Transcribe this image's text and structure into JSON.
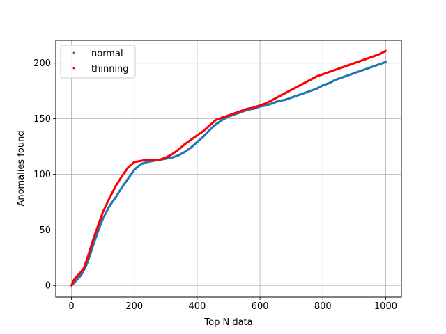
{
  "chart_data": {
    "type": "scatter",
    "title": "",
    "xlabel": "Top N data",
    "ylabel": "Anomalies found",
    "xlim": [
      -50,
      1050
    ],
    "ylim": [
      -10.5,
      220.5
    ],
    "xticks": [
      0,
      200,
      400,
      600,
      800,
      1000
    ],
    "yticks": [
      0,
      50,
      100,
      150,
      200
    ],
    "xtick_labels": [
      "0",
      "200",
      "400",
      "600",
      "800",
      "1000"
    ],
    "ytick_labels": [
      "0",
      "50",
      "100",
      "150",
      "200"
    ],
    "grid": true,
    "legend_position": "top-left",
    "series": [
      {
        "name": "normal",
        "color": "#1f77b4",
        "x": [
          0,
          10,
          20,
          30,
          40,
          50,
          60,
          70,
          80,
          90,
          100,
          120,
          140,
          160,
          180,
          200,
          220,
          240,
          260,
          280,
          300,
          320,
          340,
          360,
          380,
          400,
          420,
          440,
          460,
          480,
          500,
          520,
          540,
          560,
          580,
          600,
          620,
          640,
          660,
          680,
          700,
          720,
          740,
          760,
          780,
          800,
          820,
          840,
          860,
          880,
          900,
          920,
          940,
          960,
          980,
          1000
        ],
        "y": [
          0,
          3,
          6,
          9,
          14,
          20,
          28,
          37,
          45,
          53,
          60,
          71,
          79,
          88,
          96,
          104,
          109,
          111,
          112,
          113,
          114,
          115,
          117,
          120,
          124,
          129,
          134,
          140,
          145,
          149,
          152,
          154,
          156,
          158,
          159,
          161,
          162,
          164,
          166,
          167,
          169,
          171,
          173,
          175,
          177,
          180,
          182,
          185,
          187,
          189,
          191,
          193,
          195,
          197,
          199,
          201
        ]
      },
      {
        "name": "thinning",
        "color": "#ff0000",
        "x": [
          0,
          10,
          20,
          30,
          40,
          50,
          60,
          70,
          80,
          90,
          100,
          120,
          140,
          160,
          180,
          200,
          220,
          240,
          260,
          280,
          300,
          320,
          340,
          360,
          380,
          400,
          420,
          440,
          460,
          480,
          500,
          520,
          540,
          560,
          580,
          600,
          620,
          640,
          660,
          680,
          700,
          720,
          740,
          760,
          780,
          800,
          820,
          840,
          860,
          880,
          900,
          920,
          940,
          960,
          980,
          1000
        ],
        "y": [
          0,
          6,
          9,
          12,
          16,
          24,
          33,
          42,
          50,
          58,
          66,
          78,
          89,
          98,
          106,
          111,
          112,
          113,
          113,
          113,
          115,
          118,
          122,
          127,
          131,
          135,
          139,
          144,
          149,
          151,
          153,
          155,
          157,
          159,
          160,
          162,
          164,
          167,
          170,
          173,
          176,
          179,
          182,
          185,
          188,
          190,
          192,
          194,
          196,
          198,
          200,
          202,
          204,
          206,
          208,
          211
        ]
      }
    ]
  }
}
